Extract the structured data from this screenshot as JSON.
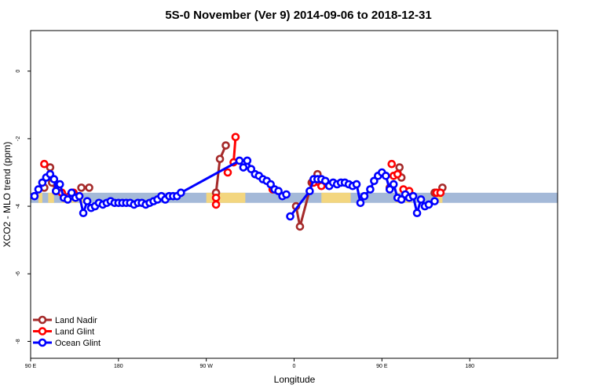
{
  "chart_data": {
    "type": "line",
    "title": "5S-0 November (Ver 9)   2014-09-06 to 2018-12-31",
    "xlabel": "Longitude",
    "ylabel": "XCO2 - MLO trend (ppm)",
    "xlim": [
      -90,
      180
    ],
    "ylim": [
      -8.5,
      1.2
    ],
    "x_scale": "plate carree, wraps at 180",
    "x_ticks": [
      {
        "value": -90,
        "label": "90 E"
      },
      {
        "value": -45,
        "label": "180"
      },
      {
        "value": 0,
        "label": "90 W"
      },
      {
        "value": 45,
        "label": "0"
      },
      {
        "value": 90,
        "label": "90 E"
      },
      {
        "value": 135,
        "label": "180"
      }
    ],
    "y_ticks": [
      {
        "value": 0,
        "label": "0"
      },
      {
        "value": -2,
        "label": "-2"
      },
      {
        "value": -4,
        "label": "-4"
      },
      {
        "value": -6,
        "label": "-6"
      },
      {
        "value": -8,
        "label": "-8"
      }
    ],
    "background_band": {
      "ymin": -3.9,
      "ymax": -3.6,
      "ocean_color": "#a4b9d8",
      "land_color": "#f3d67f"
    },
    "legend_position": "bottom-left",
    "series": [
      {
        "name": "Land Nadir",
        "color": "#a52a2a",
        "points": [
          [
            -83,
            -3.45
          ],
          [
            -80,
            -2.85
          ],
          [
            -79,
            -3.3
          ],
          [
            -77,
            -3.55
          ],
          [
            -64,
            -3.45
          ],
          [
            -60,
            -3.45
          ],
          [
            5,
            -3.6
          ],
          [
            7,
            -2.6
          ],
          [
            10,
            -2.2
          ],
          [
            46,
            -4
          ],
          [
            48,
            -4.6
          ],
          [
            54,
            -3.3
          ],
          [
            57,
            -3.05
          ],
          [
            58,
            -3.25
          ],
          [
            94,
            -3.45
          ],
          [
            99,
            -2.85
          ],
          [
            100,
            -3.15
          ],
          [
            117,
            -3.6
          ],
          [
            121,
            -3.45
          ]
        ],
        "connected": [
          [
            2,
            3
          ],
          [
            6,
            7
          ],
          [
            7,
            8
          ],
          [
            9,
            10
          ],
          [
            10,
            11
          ],
          [
            11,
            12
          ],
          [
            12,
            13
          ],
          [
            15,
            16
          ]
        ]
      },
      {
        "name": "Land Glint",
        "color": "#ff0000",
        "points": [
          [
            -83,
            -2.75
          ],
          [
            -80,
            -3.1
          ],
          [
            -74,
            -3.6
          ],
          [
            -70,
            -3.7
          ],
          [
            -68,
            -3.6
          ],
          [
            5,
            -3.75
          ],
          [
            5,
            -3.95
          ],
          [
            11,
            -3.0
          ],
          [
            14,
            -2.7
          ],
          [
            15,
            -1.95
          ],
          [
            34,
            -3.5
          ],
          [
            55,
            -3.3
          ],
          [
            58,
            -3.3
          ],
          [
            59,
            -3.4
          ],
          [
            95,
            -2.75
          ],
          [
            96,
            -3.1
          ],
          [
            98,
            -3.05
          ],
          [
            101,
            -3.5
          ],
          [
            104,
            -3.55
          ],
          [
            118,
            -3.6
          ],
          [
            120,
            -3.6
          ]
        ],
        "connected": [
          [
            5,
            6
          ],
          [
            8,
            9
          ]
        ]
      },
      {
        "name": "Ocean Glint",
        "color": "#0000ff",
        "points": [
          [
            -88,
            -3.7
          ],
          [
            -86,
            -3.5
          ],
          [
            -84,
            -3.3
          ],
          [
            -82,
            -3.15
          ],
          [
            -80,
            -3.05
          ],
          [
            -78,
            -3.2
          ],
          [
            -77,
            -3.55
          ],
          [
            -75,
            -3.35
          ],
          [
            -73,
            -3.75
          ],
          [
            -71,
            -3.8
          ],
          [
            -69,
            -3.6
          ],
          [
            -67,
            -3.75
          ],
          [
            -65,
            -3.7
          ],
          [
            -63,
            -4.2
          ],
          [
            -61,
            -3.85
          ],
          [
            -59,
            -4.05
          ],
          [
            -57,
            -4.0
          ],
          [
            -55,
            -3.9
          ],
          [
            -53,
            -3.95
          ],
          [
            -51,
            -3.9
          ],
          [
            -49,
            -3.85
          ],
          [
            -47,
            -3.9
          ],
          [
            -45,
            -3.9
          ],
          [
            -43,
            -3.9
          ],
          [
            -41,
            -3.9
          ],
          [
            -39,
            -3.9
          ],
          [
            -37,
            -3.95
          ],
          [
            -35,
            -3.9
          ],
          [
            -33,
            -3.9
          ],
          [
            -31,
            -3.95
          ],
          [
            -29,
            -3.9
          ],
          [
            -27,
            -3.85
          ],
          [
            -25,
            -3.8
          ],
          [
            -23,
            -3.7
          ],
          [
            -21,
            -3.8
          ],
          [
            -19,
            -3.7
          ],
          [
            -17,
            -3.7
          ],
          [
            -15,
            -3.7
          ],
          [
            -13,
            -3.6
          ],
          [
            17,
            -2.65
          ],
          [
            19,
            -2.85
          ],
          [
            21,
            -2.65
          ],
          [
            23,
            -2.9
          ],
          [
            25,
            -3.05
          ],
          [
            27,
            -3.1
          ],
          [
            29,
            -3.2
          ],
          [
            31,
            -3.25
          ],
          [
            33,
            -3.35
          ],
          [
            35,
            -3.5
          ],
          [
            37,
            -3.55
          ],
          [
            39,
            -3.7
          ],
          [
            41,
            -3.65
          ],
          [
            43,
            -4.3
          ],
          [
            53,
            -3.55
          ],
          [
            55,
            -3.2
          ],
          [
            57,
            -3.2
          ],
          [
            59,
            -3.2
          ],
          [
            61,
            -3.25
          ],
          [
            63,
            -3.4
          ],
          [
            65,
            -3.3
          ],
          [
            67,
            -3.35
          ],
          [
            69,
            -3.3
          ],
          [
            71,
            -3.3
          ],
          [
            73,
            -3.35
          ],
          [
            75,
            -3.4
          ],
          [
            77,
            -3.35
          ],
          [
            79,
            -3.9
          ],
          [
            81,
            -3.7
          ],
          [
            84,
            -3.5
          ],
          [
            86,
            -3.25
          ],
          [
            88,
            -3.1
          ],
          [
            90,
            -3.0
          ],
          [
            92,
            -3.1
          ],
          [
            94,
            -3.5
          ],
          [
            96,
            -3.35
          ],
          [
            98,
            -3.75
          ],
          [
            100,
            -3.8
          ],
          [
            102,
            -3.65
          ],
          [
            104,
            -3.75
          ],
          [
            106,
            -3.7
          ],
          [
            108,
            -4.2
          ],
          [
            110,
            -3.8
          ],
          [
            112,
            -4.0
          ],
          [
            114,
            -3.95
          ],
          [
            117,
            -3.85
          ]
        ],
        "connected": [
          [
            0,
            37
          ],
          [
            38,
            51
          ],
          [
            52,
            83
          ]
        ]
      }
    ]
  }
}
